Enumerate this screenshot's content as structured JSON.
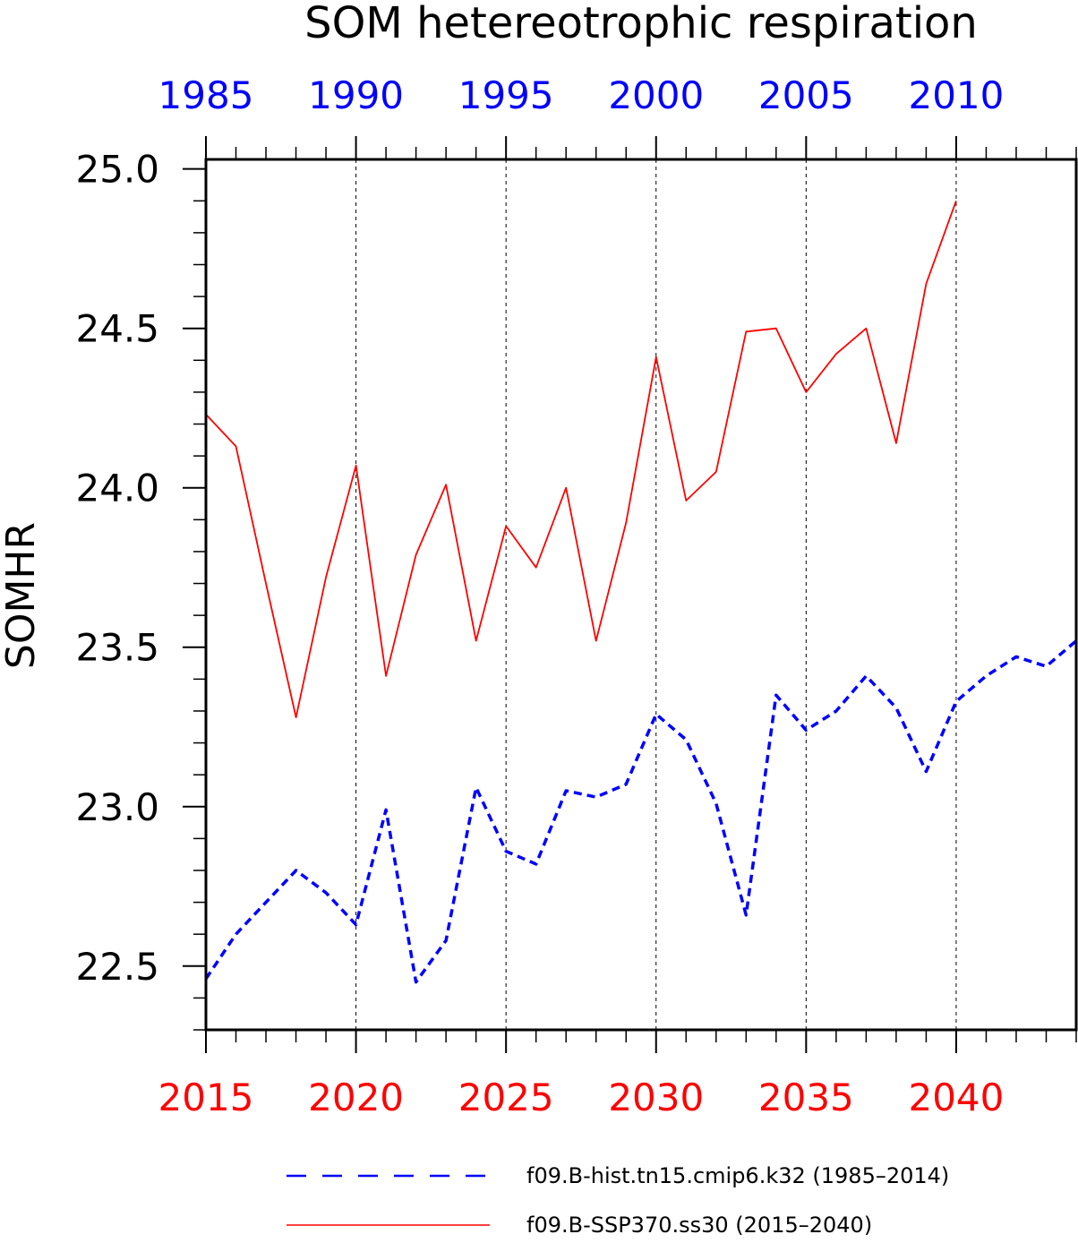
{
  "chart_data": {
    "type": "line",
    "title": "SOM hetereotrophic respiration",
    "ylabel": "SOMHR",
    "ylim": [
      22.3,
      25.03
    ],
    "yticks": [
      "22.5",
      "23.0",
      "23.5",
      "24.0",
      "24.5",
      "25.0"
    ],
    "yminor_step": 0.1,
    "x_bottom": {
      "range": [
        2015,
        2044
      ],
      "ticks": [
        "2015",
        "2020",
        "2025",
        "2030",
        "2035",
        "2040"
      ],
      "color": "#ff0000"
    },
    "x_top": {
      "range": [
        1985,
        2014
      ],
      "ticks": [
        "1985",
        "1990",
        "1995",
        "2000",
        "2005",
        "2010"
      ],
      "color": "#0000ff"
    },
    "grid": "vertical-dashed-at-major-ticks",
    "legend_position": "bottom",
    "series": [
      {
        "name": "f09.B-hist.tn15.cmip6.k32 (1985–2014)",
        "axis": "top",
        "color": "#0000ff",
        "style": "dashed",
        "x": [
          1985,
          1986,
          1987,
          1988,
          1989,
          1990,
          1991,
          1992,
          1993,
          1994,
          1995,
          1996,
          1997,
          1998,
          1999,
          2000,
          2001,
          2002,
          2003,
          2004,
          2005,
          2006,
          2007,
          2008,
          2009,
          2010,
          2011,
          2012,
          2013,
          2014
        ],
        "values": [
          22.46,
          22.6,
          22.7,
          22.8,
          22.73,
          22.63,
          22.99,
          22.45,
          22.58,
          23.06,
          22.86,
          22.82,
          23.05,
          23.03,
          23.07,
          23.29,
          23.21,
          23.01,
          22.66,
          23.35,
          23.24,
          23.3,
          23.41,
          23.31,
          23.11,
          23.33,
          23.41,
          23.47,
          23.44,
          23.52
        ]
      },
      {
        "name": "f09.B-SSP370.ss30 (2015–2040)",
        "axis": "bottom",
        "color": "#ff0000",
        "style": "solid",
        "x": [
          2015,
          2016,
          2017,
          2018,
          2019,
          2020,
          2021,
          2022,
          2023,
          2024,
          2025,
          2026,
          2027,
          2028,
          2029,
          2030,
          2031,
          2032,
          2033,
          2034,
          2035,
          2036,
          2037,
          2038,
          2039,
          2040
        ],
        "values": [
          24.23,
          24.13,
          23.7,
          23.28,
          23.72,
          24.07,
          23.41,
          23.79,
          24.01,
          23.52,
          23.88,
          23.75,
          24.0,
          23.52,
          23.89,
          24.41,
          23.96,
          24.05,
          24.49,
          24.5,
          24.3,
          24.42,
          24.5,
          24.14,
          24.64,
          24.9
        ]
      }
    ]
  }
}
